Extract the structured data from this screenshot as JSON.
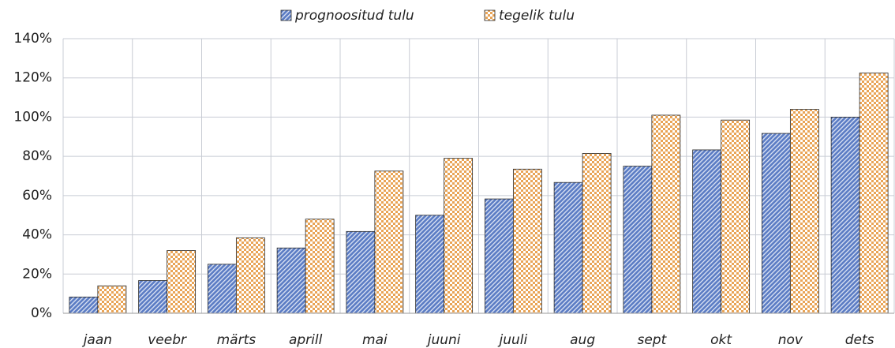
{
  "chart_data": {
    "type": "bar",
    "categories": [
      "jaan",
      "veebr",
      "märts",
      "aprill",
      "mai",
      "juuni",
      "juuli",
      "aug",
      "sept",
      "okt",
      "nov",
      "dets"
    ],
    "series": [
      {
        "name": "prognoositud tulu",
        "color": "#5b7cc4",
        "pattern": "stripes",
        "values": [
          8.3,
          16.7,
          25,
          33.3,
          41.7,
          50,
          58.3,
          66.7,
          75,
          83.3,
          91.7,
          100
        ]
      },
      {
        "name": "tegelik tulu",
        "color": "#e9a456",
        "pattern": "checker",
        "values": [
          14,
          32,
          38.5,
          48,
          72.5,
          79,
          73.5,
          81.5,
          101,
          98.5,
          104,
          122.5
        ]
      }
    ],
    "ylim": [
      0,
      140
    ],
    "yticks": [
      {
        "value": 0,
        "label": "0%"
      },
      {
        "value": 20,
        "label": "20%"
      },
      {
        "value": 40,
        "label": "40%"
      },
      {
        "value": 60,
        "label": "60%"
      },
      {
        "value": 80,
        "label": "80%"
      },
      {
        "value": 100,
        "label": "100%"
      },
      {
        "value": 120,
        "label": "120%"
      },
      {
        "value": 140,
        "label": "140%"
      }
    ],
    "grid": true,
    "legend": "top"
  }
}
